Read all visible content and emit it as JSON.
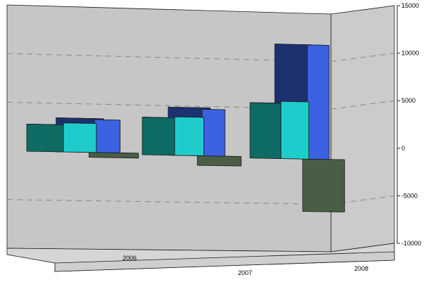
{
  "chart_data": {
    "type": "bar",
    "categories": [
      "2006",
      "2007",
      "2008"
    ],
    "series": [
      {
        "values": [
          2800,
          3900,
          5800
        ]
      },
      {
        "values": [
          3000,
          4000,
          6000
        ]
      },
      {
        "values": [
          3500,
          5000,
          12000
        ]
      },
      {
        "values": [
          -500,
          -1000,
          -5500
        ]
      }
    ],
    "series_colors": [
      "#0e6b63",
      "#1fcccc",
      "#3b62e0",
      "#4a5e45"
    ],
    "series_side_colors": [
      "#0b5750",
      "#1a4096",
      "#2a3f9e",
      "#3c4c37"
    ],
    "series_top_colors": [
      "#0d5f58",
      "#1aa8a8",
      "#1d3170",
      "#354431"
    ],
    "extra_face_colors": [
      "#8ec48e"
    ],
    "y_tick_labels": [
      "15000",
      "10000",
      "5000",
      "0",
      "-5000",
      "-10000"
    ],
    "ylim": [
      -10000,
      15000
    ],
    "grid": "dashed horizontal",
    "legend": "none",
    "style": "3d-stacked-depth"
  }
}
